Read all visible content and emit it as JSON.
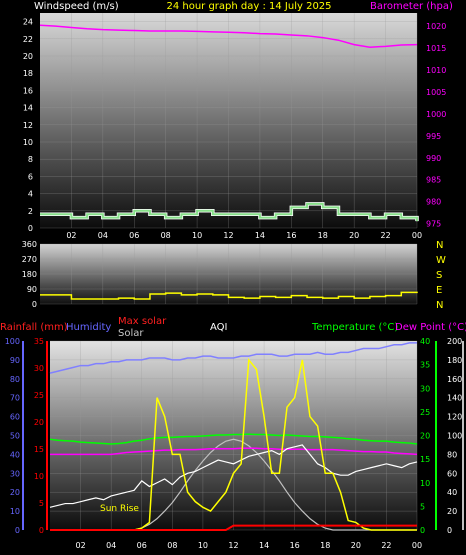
{
  "title": "24 hour graph day : 14 July 2025",
  "colors": {
    "background": "#000000",
    "title": "#ffff00",
    "axis_text": "#ffffff",
    "barometer": "#ff00ff",
    "wind_speed": "#88e08a",
    "wind_speed_outline": "#ffffff",
    "wind_dir": "#ffff00",
    "rainfall": "#ff0000",
    "humidity": "#6666ff",
    "max_solar": "#c0c0c0",
    "solar": "#ffff00",
    "aqi": "#ffffff",
    "temperature": "#00ff00",
    "dew_point": "#ff00ff",
    "temp_humidity_series": "#8080ff",
    "aqi_series": "#ffffff"
  },
  "x_tick_labels": [
    "02",
    "04",
    "06",
    "08",
    "10",
    "12",
    "14",
    "16",
    "18",
    "20",
    "22",
    "00"
  ],
  "chart_data": [
    {
      "type": "line",
      "panel": "wind_pressure",
      "x_hours": [
        0,
        1,
        2,
        3,
        4,
        5,
        6,
        7,
        8,
        9,
        10,
        11,
        12,
        13,
        14,
        15,
        16,
        17,
        18,
        19,
        20,
        21,
        22,
        23,
        24
      ],
      "left_axis": {
        "label": "Windspeed (m/s)",
        "ylim": [
          0,
          25
        ],
        "ticks": [
          "0",
          "2",
          "4",
          "6",
          "8",
          "10",
          "12",
          "14",
          "16",
          "18",
          "20",
          "22",
          "24"
        ]
      },
      "right_axis": {
        "label": "Barometer (hpa)",
        "ylim": [
          974,
          1023
        ],
        "ticks": [
          "975",
          "980",
          "985",
          "990",
          "995",
          "1000",
          "1005",
          "1010",
          "1015",
          "1020"
        ]
      },
      "series": [
        {
          "name": "Barometer",
          "axis": "right",
          "values": [
            1020.2,
            1020.0,
            1019.7,
            1019.4,
            1019.2,
            1019.1,
            1019.0,
            1018.9,
            1018.9,
            1018.9,
            1018.8,
            1018.7,
            1018.6,
            1018.5,
            1018.3,
            1018.2,
            1018.0,
            1017.8,
            1017.4,
            1016.8,
            1015.8,
            1015.2,
            1015.4,
            1015.7,
            1015.8
          ]
        },
        {
          "name": "Windspeed",
          "axis": "left",
          "values": [
            1.6,
            1.6,
            1.2,
            1.6,
            1.2,
            1.6,
            2.0,
            1.6,
            1.2,
            1.6,
            2.0,
            1.6,
            1.6,
            1.6,
            1.2,
            1.6,
            2.4,
            2.8,
            2.4,
            1.6,
            1.6,
            1.2,
            1.6,
            1.2,
            0.8
          ]
        }
      ]
    },
    {
      "type": "line",
      "panel": "wind_direction",
      "x_hours": [
        0,
        1,
        2,
        3,
        4,
        5,
        6,
        7,
        8,
        9,
        10,
        11,
        12,
        13,
        14,
        15,
        16,
        17,
        18,
        19,
        20,
        21,
        22,
        23,
        24
      ],
      "ylim": [
        0,
        360
      ],
      "y_ticks": [
        "0",
        "90",
        "180",
        "270",
        "360"
      ],
      "compass_labels": [
        "N",
        "W",
        "S",
        "E",
        "N"
      ],
      "series": [
        {
          "name": "Wind direction",
          "values": [
            55,
            55,
            30,
            30,
            30,
            35,
            30,
            60,
            65,
            55,
            60,
            55,
            40,
            35,
            45,
            40,
            50,
            40,
            35,
            45,
            35,
            45,
            50,
            70,
            65
          ]
        }
      ]
    },
    {
      "type": "line",
      "panel": "temperature_solar",
      "x_hours_start": 0,
      "x_hours_step": 0.5,
      "headers": {
        "rainfall": "Rainfall (mm)",
        "humidity": "Humidity",
        "max_solar": "Max solar",
        "solar": "Solar",
        "aqi": "AQI",
        "temperature": "Temperature (°C)",
        "dew_point": "Dew Point (°C)"
      },
      "annotation": "Sun Rise",
      "axes": {
        "humidity": {
          "ylim": [
            0,
            100
          ],
          "ticks": [
            "0",
            "10",
            "20",
            "30",
            "40",
            "50",
            "60",
            "70",
            "80",
            "90",
            "100"
          ]
        },
        "rainfall": {
          "ylim": [
            0,
            35
          ],
          "ticks": [
            "0",
            "5",
            "10",
            "15",
            "20",
            "25",
            "30",
            "35"
          ]
        },
        "temperature": {
          "ylim": [
            0,
            40
          ],
          "ticks": [
            "0",
            "5",
            "10",
            "15",
            "20",
            "25",
            "30",
            "35",
            "40"
          ]
        },
        "solar_aqi": {
          "ylim": [
            0,
            200
          ],
          "ticks": [
            "0",
            "20",
            "40",
            "60",
            "80",
            "100",
            "120",
            "140",
            "160",
            "180",
            "200"
          ]
        }
      },
      "series": [
        {
          "name": "Humidity",
          "axis": "humidity",
          "values": [
            83,
            84,
            85,
            86,
            87,
            87,
            88,
            88,
            89,
            89,
            90,
            90,
            90,
            91,
            91,
            91,
            90,
            90,
            91,
            91,
            92,
            92,
            91,
            91,
            91,
            92,
            92,
            93,
            93,
            93,
            92,
            92,
            93,
            93,
            93,
            94,
            93,
            93,
            94,
            94,
            95,
            96,
            96,
            96,
            97,
            98,
            98,
            99,
            99
          ]
        },
        {
          "name": "Temperature",
          "axis": "temperature",
          "values": [
            19.2,
            19.0,
            18.9,
            18.8,
            18.6,
            18.5,
            18.4,
            18.3,
            18.2,
            18.3,
            18.5,
            18.8,
            19.0,
            19.3,
            19.5,
            19.6,
            19.6,
            19.7,
            19.8,
            19.8,
            19.9,
            20.0,
            20.1,
            20.1,
            20.2,
            20.2,
            20.3,
            20.2,
            20.2,
            20.1,
            20.0,
            20.1,
            20.0,
            19.9,
            19.8,
            19.8,
            19.7,
            19.6,
            19.5,
            19.3,
            19.2,
            19.0,
            18.9,
            18.8,
            18.8,
            18.6,
            18.5,
            18.4,
            18.2
          ]
        },
        {
          "name": "Dew Point",
          "axis": "temperature",
          "values": [
            16.0,
            16.0,
            16.0,
            16.0,
            16.0,
            16.0,
            16.0,
            16.0,
            16.0,
            16.2,
            16.4,
            16.5,
            16.6,
            16.7,
            16.8,
            16.9,
            16.9,
            17.0,
            17.0,
            17.0,
            17.1,
            17.2,
            17.2,
            17.2,
            17.2,
            17.3,
            17.3,
            17.3,
            17.2,
            17.2,
            17.1,
            17.1,
            17.1,
            17.1,
            17.0,
            17.0,
            17.0,
            17.0,
            16.9,
            16.8,
            16.7,
            16.6,
            16.6,
            16.5,
            16.5,
            16.3,
            16.2,
            16.1,
            16.0
          ]
        },
        {
          "name": "Max solar",
          "axis": "solar_aqi",
          "values": [
            0,
            0,
            0,
            0,
            0,
            0,
            0,
            0,
            0,
            0,
            0,
            0,
            2,
            6,
            12,
            20,
            29,
            40,
            52,
            63,
            73,
            82,
            89,
            94,
            96,
            94,
            89,
            82,
            73,
            63,
            52,
            40,
            29,
            20,
            12,
            6,
            2,
            0,
            0,
            0,
            0,
            0,
            0,
            0,
            0,
            0,
            0,
            0,
            0
          ]
        },
        {
          "name": "Solar",
          "axis": "solar_aqi",
          "values": [
            0,
            0,
            0,
            0,
            0,
            0,
            0,
            0,
            0,
            0,
            0,
            0,
            2,
            8,
            140,
            120,
            80,
            80,
            40,
            30,
            24,
            20,
            30,
            40,
            60,
            70,
            180,
            170,
            120,
            60,
            60,
            130,
            140,
            180,
            120,
            110,
            60,
            60,
            40,
            10,
            8,
            2,
            0,
            0,
            0,
            0,
            0,
            0,
            0
          ]
        },
        {
          "name": "AQI",
          "axis": "solar_aqi",
          "values": [
            24,
            26,
            28,
            28,
            30,
            32,
            34,
            32,
            36,
            38,
            40,
            42,
            52,
            46,
            50,
            54,
            48,
            56,
            60,
            62,
            66,
            70,
            74,
            72,
            70,
            74,
            78,
            80,
            82,
            84,
            80,
            86,
            88,
            90,
            80,
            70,
            66,
            60,
            58,
            58,
            62,
            64,
            66,
            68,
            70,
            68,
            66,
            70,
            72
          ]
        },
        {
          "name": "Rainfall",
          "axis": "rainfall",
          "values": [
            0,
            0,
            0,
            0,
            0,
            0,
            0,
            0,
            0,
            0,
            0,
            0,
            0,
            0,
            0,
            0,
            0,
            0,
            0,
            0,
            0,
            0,
            0,
            0,
            0.8,
            0.8,
            0.8,
            0.8,
            0.8,
            0.8,
            0.8,
            0.8,
            0.8,
            0.8,
            0.8,
            0.8,
            0.8,
            0.8,
            0.8,
            0.8,
            0.8,
            0.8,
            0.8,
            0.8,
            0.8,
            0.8,
            0.8,
            0.8,
            0.8
          ]
        }
      ]
    }
  ]
}
